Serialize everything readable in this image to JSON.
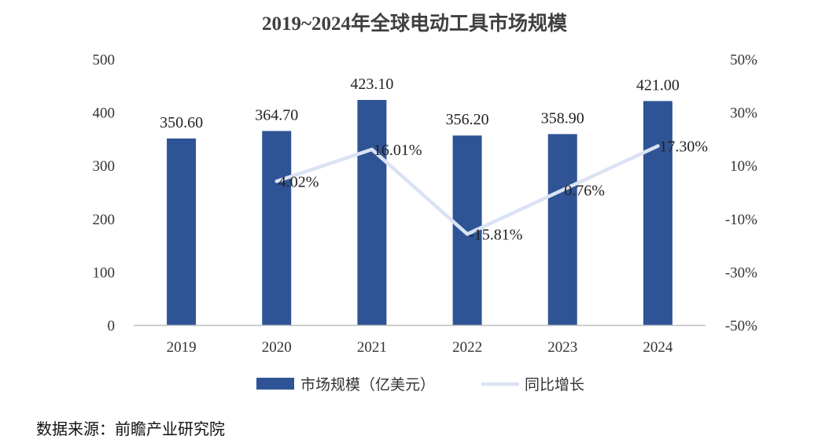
{
  "chart_data": {
    "type": "bar",
    "title": "2019~2024年全球电动工具市场规模",
    "categories": [
      "2019",
      "2020",
      "2021",
      "2022",
      "2023",
      "2024"
    ],
    "series": [
      {
        "name": "市场规模（亿美元）",
        "type": "bar",
        "axis": "left",
        "values": [
          350.6,
          364.7,
          423.1,
          356.2,
          358.9,
          421.0
        ],
        "labels": [
          "350.60",
          "364.70",
          "423.10",
          "356.20",
          "358.90",
          "421.00"
        ]
      },
      {
        "name": "同比增长",
        "type": "line",
        "axis": "right",
        "values": [
          null,
          4.02,
          16.01,
          -15.81,
          0.76,
          17.3
        ],
        "labels": [
          "",
          "4.02%",
          "16.01%",
          "-15.81%",
          "0.76%",
          "17.30%"
        ]
      }
    ],
    "y_left": {
      "ylim": [
        0,
        500
      ],
      "ticks": [
        "0",
        "100",
        "200",
        "300",
        "400",
        "500"
      ]
    },
    "y_right": {
      "ylim": [
        -50,
        50
      ],
      "ticks": [
        "-50%",
        "-30%",
        "-10%",
        "10%",
        "30%",
        "50%"
      ]
    },
    "grid": false,
    "legend_position": "bottom",
    "colors": {
      "bar": "#2F5496",
      "line": "#DAE3F3",
      "axis": "#BFBFBF"
    }
  },
  "source_text": "数据来源：前瞻产业研究院"
}
